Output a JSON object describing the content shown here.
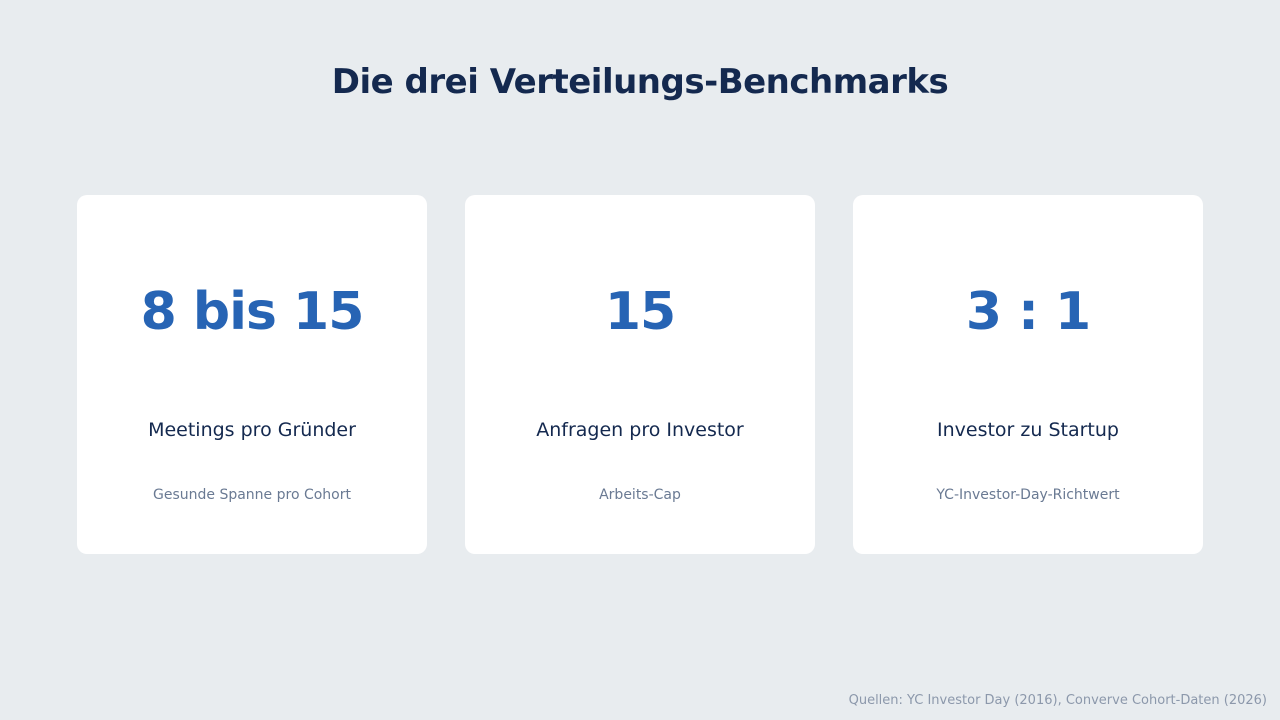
{
  "title": "Die drei Verteilungs-Benchmarks",
  "cards": [
    {
      "value": "8 bis 15",
      "label": "Meetings pro Gründer",
      "note": "Gesunde Spanne pro Cohort"
    },
    {
      "value": "15",
      "label": "Anfragen pro Investor",
      "note": "Arbeits-Cap"
    },
    {
      "value": "3 : 1",
      "label": "Investor zu Startup",
      "note": "YC-Investor-Day-Richtwert"
    }
  ],
  "footer": "Quellen: YC Investor Day (2016), Converve Cohort-Daten (2026)",
  "colors": {
    "background": "#e8ecef",
    "card": "#ffffff",
    "title": "#14294f",
    "accent": "#2764b4",
    "muted": "#6a7a93"
  }
}
